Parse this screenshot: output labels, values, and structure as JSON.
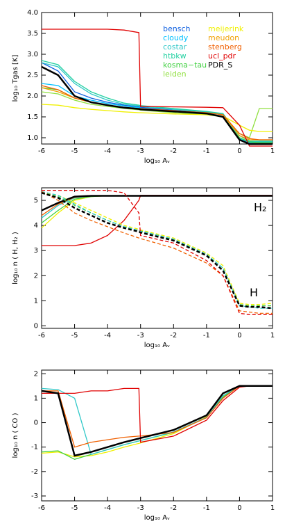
{
  "chart_data": [
    {
      "type": "line",
      "xlabel": "log₁₀ Aᵥ",
      "ylabel": "log₁₀ Tgas [K]",
      "x": [
        -6,
        -5.5,
        -5,
        -4.5,
        -4,
        -3.5,
        -3.05,
        -3,
        -2,
        -1,
        -0.5,
        0,
        0.3,
        0.6,
        1
      ],
      "xlim": [
        -6,
        1
      ],
      "xticks": [
        -6,
        -5,
        -4,
        -3,
        -2,
        -1,
        0,
        1
      ],
      "ylim": [
        0.85,
        4.0
      ],
      "yticks": [
        {
          "value": 1,
          "label": "1.0"
        },
        {
          "value": 1.5,
          "label": "1.5"
        },
        {
          "value": 2,
          "label": "2.0"
        },
        {
          "value": 2.5,
          "label": "2.5"
        },
        {
          "value": 3,
          "label": "3.0"
        },
        {
          "value": 3.5,
          "label": "3.5"
        },
        {
          "value": 4,
          "label": "4.0"
        }
      ],
      "legend": "upper right",
      "series": [
        {
          "name": "bensch",
          "color": "#1060e0",
          "values": [
            2.8,
            2.6,
            2.1,
            1.95,
            1.85,
            1.78,
            1.74,
            1.73,
            1.66,
            1.6,
            1.5,
            0.95,
            0.85,
            0.85,
            0.85
          ]
        },
        {
          "name": "cloudy",
          "color": "#00c0ff",
          "values": [
            2.3,
            2.25,
            2.0,
            1.9,
            1.82,
            1.76,
            1.72,
            1.71,
            1.64,
            1.58,
            1.52,
            0.98,
            0.88,
            0.88,
            0.88
          ]
        },
        {
          "name": "costar",
          "color": "#30c8c8",
          "values": [
            2.8,
            2.7,
            2.3,
            2.05,
            1.9,
            1.8,
            1.76,
            1.75,
            1.68,
            1.62,
            1.56,
            1.0,
            0.9,
            0.9,
            0.9
          ]
        },
        {
          "name": "htbkw",
          "color": "#20d0a0",
          "values": [
            2.85,
            2.75,
            2.35,
            2.1,
            1.95,
            1.83,
            1.78,
            1.77,
            1.7,
            1.63,
            1.58,
            1.05,
            0.92,
            0.92,
            0.92
          ]
        },
        {
          "name": "kosma−tau",
          "color": "#40d040",
          "values": [
            2.2,
            2.15,
            1.95,
            1.85,
            1.78,
            1.72,
            1.7,
            1.69,
            1.63,
            1.57,
            1.5,
            1.0,
            0.9,
            0.88,
            0.88
          ]
        },
        {
          "name": "leiden",
          "color": "#90e040",
          "values": [
            2.1,
            2.05,
            1.9,
            1.8,
            1.75,
            1.7,
            1.67,
            1.66,
            1.6,
            1.55,
            1.5,
            1.1,
            1.0,
            1.7,
            1.7
          ]
        },
        {
          "name": "meijerink",
          "color": "#f0f000",
          "values": [
            1.8,
            1.78,
            1.72,
            1.68,
            1.65,
            1.62,
            1.6,
            1.6,
            1.57,
            1.55,
            1.52,
            1.3,
            1.18,
            1.15,
            1.15
          ]
        },
        {
          "name": "meudon",
          "color": "#f0a000",
          "values": [
            2.2,
            2.1,
            1.95,
            1.85,
            1.78,
            1.72,
            1.7,
            1.69,
            1.64,
            1.6,
            1.55,
            1.05,
            0.95,
            0.95,
            0.95
          ]
        },
        {
          "name": "stenberg",
          "color": "#f06000",
          "values": [
            2.25,
            2.15,
            1.95,
            1.85,
            1.78,
            1.73,
            1.7,
            1.7,
            1.65,
            1.6,
            1.55,
            1.1,
            0.98,
            0.95,
            0.95
          ]
        },
        {
          "name": "ucl_pdr",
          "color": "#e00000",
          "values": [
            3.6,
            3.6,
            3.6,
            3.6,
            3.6,
            3.58,
            3.52,
            1.75,
            1.74,
            1.73,
            1.72,
            1.3,
            0.8,
            0.8,
            0.8
          ]
        },
        {
          "name": "PDR_S",
          "color": "#000000",
          "values": [
            2.7,
            2.5,
            2.0,
            1.85,
            1.78,
            1.72,
            1.69,
            1.68,
            1.63,
            1.58,
            1.5,
            0.95,
            0.85,
            0.85,
            0.85
          ]
        }
      ]
    },
    {
      "type": "line",
      "xlabel": "log₁₀ Aᵥ",
      "ylabel": "log₁₀ n ( H, H₂ )",
      "annotations": [
        "H₂",
        "H"
      ],
      "x": [
        -6,
        -5.5,
        -5,
        -4.5,
        -4,
        -3.5,
        -3.05,
        -3,
        -2,
        -1,
        -0.5,
        0,
        0.3,
        0.6,
        1
      ],
      "xlim": [
        -6,
        1
      ],
      "xticks": [
        -6,
        -5,
        -4,
        -3,
        -2,
        -1,
        0,
        1
      ],
      "ylim": [
        -0.1,
        5.5
      ],
      "yticks": [
        0,
        1,
        2,
        3,
        4,
        5
      ],
      "series": [
        {
          "color": "#f0f000",
          "dashed": false,
          "values": [
            3.9,
            4.5,
            5.0,
            5.15,
            5.18,
            5.18,
            5.18,
            5.18,
            5.18,
            5.18,
            5.18,
            5.18,
            5.18,
            5.18,
            5.18
          ]
        },
        {
          "color": "#40d040",
          "dashed": false,
          "values": [
            4.1,
            4.6,
            5.05,
            5.15,
            5.18,
            5.18,
            5.18,
            5.18,
            5.18,
            5.18,
            5.18,
            5.18,
            5.18,
            5.18,
            5.18
          ]
        },
        {
          "color": "#30c8c8",
          "dashed": false,
          "values": [
            4.3,
            4.8,
            5.1,
            5.18,
            5.18,
            5.18,
            5.18,
            5.18,
            5.18,
            5.18,
            5.18,
            5.18,
            5.18,
            5.18,
            5.18
          ]
        },
        {
          "color": "#f06000",
          "dashed": false,
          "values": [
            4.4,
            4.85,
            5.12,
            5.18,
            5.18,
            5.18,
            5.18,
            5.18,
            5.18,
            5.18,
            5.18,
            5.18,
            5.18,
            5.18,
            5.18
          ]
        },
        {
          "color": "#e00000",
          "dashed": false,
          "values": [
            3.2,
            3.2,
            3.2,
            3.3,
            3.6,
            4.2,
            5.0,
            5.2,
            5.2,
            5.2,
            5.2,
            5.2,
            5.2,
            5.2,
            5.2
          ]
        },
        {
          "color": "#000000",
          "dashed": false,
          "values": [
            4.6,
            4.9,
            5.15,
            5.18,
            5.18,
            5.18,
            5.18,
            5.18,
            5.18,
            5.18,
            5.18,
            5.18,
            5.18,
            5.18,
            5.18
          ]
        },
        {
          "color": "#f0f000",
          "dashed": true,
          "values": [
            5.3,
            5.2,
            4.9,
            4.6,
            4.3,
            4.0,
            3.85,
            3.82,
            3.5,
            2.9,
            2.4,
            0.9,
            0.85,
            0.85,
            0.9
          ]
        },
        {
          "color": "#40d040",
          "dashed": true,
          "values": [
            5.3,
            5.15,
            4.8,
            4.5,
            4.2,
            3.95,
            3.8,
            3.78,
            3.45,
            2.85,
            2.3,
            0.85,
            0.8,
            0.8,
            0.8
          ]
        },
        {
          "color": "#30c8c8",
          "dashed": true,
          "values": [
            5.35,
            5.2,
            4.85,
            4.5,
            4.2,
            3.95,
            3.8,
            3.78,
            3.45,
            2.85,
            2.3,
            0.8,
            0.75,
            0.7,
            0.7
          ]
        },
        {
          "color": "#f06000",
          "dashed": true,
          "values": [
            5.35,
            5.0,
            4.5,
            4.2,
            3.95,
            3.7,
            3.5,
            3.48,
            3.1,
            2.5,
            2.0,
            0.6,
            0.55,
            0.5,
            0.5
          ]
        },
        {
          "color": "#e00000",
          "dashed": true,
          "values": [
            5.4,
            5.4,
            5.4,
            5.4,
            5.4,
            5.3,
            4.5,
            3.6,
            3.3,
            2.6,
            2.0,
            0.5,
            0.45,
            0.45,
            0.45
          ]
        },
        {
          "color": "#000000",
          "dashed": true,
          "values": [
            5.3,
            5.1,
            4.7,
            4.4,
            4.1,
            3.9,
            3.75,
            3.72,
            3.4,
            2.8,
            2.2,
            0.8,
            0.75,
            0.75,
            0.7
          ]
        }
      ]
    },
    {
      "type": "line",
      "xlabel": "log₁₀ Aᵥ",
      "ylabel": "log₁₀ n ( CO )",
      "x": [
        -6,
        -5.5,
        -5,
        -4.5,
        -4,
        -3.5,
        -3.05,
        -3,
        -2,
        -1,
        -0.5,
        0,
        0.3,
        0.6,
        1
      ],
      "xlim": [
        -6,
        1
      ],
      "xticks": [
        -6,
        -5,
        -4,
        -3,
        -2,
        -1,
        0,
        1
      ],
      "ylim": [
        -3.2,
        2.15
      ],
      "yticks": [
        -3,
        -2,
        -1,
        0,
        1,
        2
      ],
      "series": [
        {
          "color": "#f0f000",
          "values": [
            -1.25,
            -1.2,
            -1.4,
            -1.35,
            -1.2,
            -1.0,
            -0.85,
            -0.83,
            -0.45,
            0.25,
            1.1,
            1.5,
            1.5,
            1.5,
            1.5
          ]
        },
        {
          "color": "#40d040",
          "values": [
            -1.2,
            -1.15,
            -1.5,
            -1.3,
            -1.1,
            -0.9,
            -0.75,
            -0.73,
            -0.4,
            0.2,
            1.05,
            1.5,
            1.5,
            1.5,
            1.5
          ]
        },
        {
          "color": "#30c8c8",
          "values": [
            1.4,
            1.35,
            1.0,
            -1.3,
            -1.1,
            -0.9,
            -0.75,
            -0.73,
            -0.38,
            0.22,
            1.1,
            1.5,
            1.5,
            1.5,
            1.5
          ]
        },
        {
          "color": "#f06000",
          "values": [
            1.3,
            1.3,
            -1.0,
            -0.8,
            -0.7,
            -0.6,
            -0.55,
            -0.55,
            -0.4,
            0.2,
            1.0,
            1.5,
            1.5,
            1.5,
            1.5
          ]
        },
        {
          "color": "#e00000",
          "values": [
            1.2,
            1.2,
            1.2,
            1.3,
            1.3,
            1.4,
            1.4,
            -0.8,
            -0.55,
            0.1,
            0.9,
            1.45,
            1.5,
            1.5,
            1.5
          ]
        },
        {
          "color": "#000000",
          "values": [
            1.3,
            1.2,
            -1.35,
            -1.2,
            -1.0,
            -0.8,
            -0.65,
            -0.63,
            -0.3,
            0.3,
            1.2,
            1.5,
            1.5,
            1.5,
            1.5
          ]
        }
      ]
    }
  ]
}
